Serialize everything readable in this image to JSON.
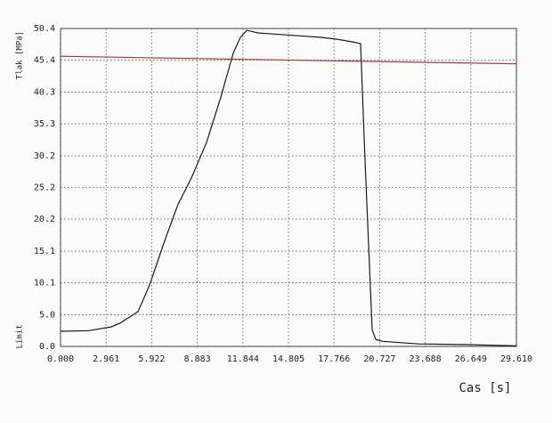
{
  "chart_data": {
    "type": "line",
    "y_label": "Tlak [MPa]",
    "x_label": "Cas [s]",
    "xlim": [
      0,
      29.61
    ],
    "ylim": [
      0,
      50.4
    ],
    "xticks": [
      {
        "value": 0,
        "label": "0.000"
      },
      2.961,
      5.922,
      8.883,
      11.844,
      14.805,
      17.766,
      20.727,
      23.688,
      26.649,
      {
        "value": 29.61,
        "label": "29.610"
      }
    ],
    "yticks": [
      {
        "value": 0,
        "label": "0.0"
      },
      {
        "value": 5,
        "label": "5.0"
      },
      10.1,
      15.1,
      20.2,
      25.2,
      30.2,
      35.3,
      40.3,
      45.4,
      50.4
    ],
    "grid": true,
    "series": [
      {
        "color": "#1a1a1a",
        "x": [
          0,
          1.85,
          3.3,
          3.87,
          5.03,
          5.78,
          6.77,
          7.63,
          8.5,
          9.48,
          10.4,
          11.22,
          11.68,
          12.09,
          12.84,
          13.42,
          15.15,
          16.89,
          17.93,
          18.91,
          19.49,
          19.78,
          20.24,
          20.47,
          20.93,
          23.25,
          26.14,
          29.61
        ],
        "values": [
          2.4,
          2.5,
          3.1,
          3.7,
          5.5,
          9.7,
          16.8,
          22.5,
          26.7,
          32.3,
          39.4,
          46.5,
          49.0,
          50.1,
          49.7,
          49.6,
          49.3,
          49.0,
          48.7,
          48.3,
          48.0,
          29.5,
          2.7,
          1.1,
          0.8,
          0.4,
          0.3,
          0.1
        ]
      },
      {
        "name": "Limit",
        "color": "#b03040",
        "x": [
          0,
          29.61
        ],
        "values": [
          46.0,
          44.8
        ]
      }
    ]
  }
}
